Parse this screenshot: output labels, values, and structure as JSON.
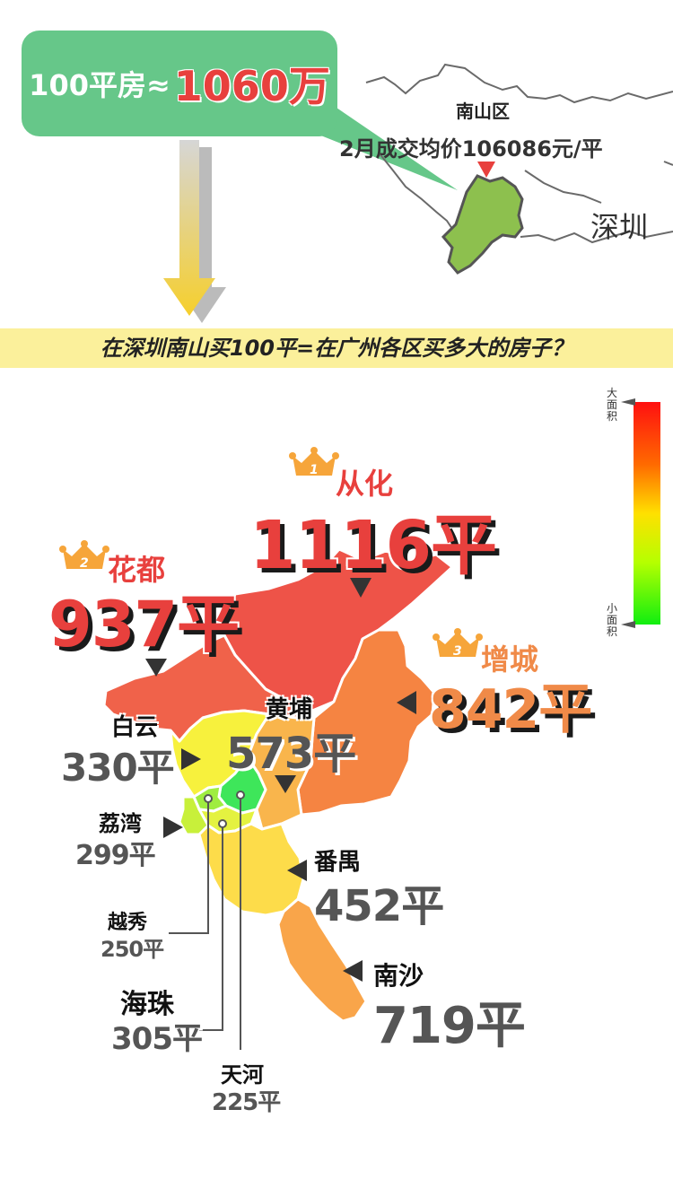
{
  "header": {
    "bubble_prefix": "100平房≈",
    "bubble_price": "1060万",
    "district_name": "南山区",
    "district_price": "2月成交均价106086元/平",
    "city_name": "深圳"
  },
  "banner": {
    "text": "在深圳南山买100平=在广州各区买多大的房子？"
  },
  "legend": {
    "top_label": "大面积",
    "bottom_label": "小面积",
    "colors": [
      "#ff1010",
      "#ff6a00",
      "#ffe000",
      "#b6ff00",
      "#10ee10"
    ]
  },
  "districts": {
    "conghua": {
      "name": "从化",
      "area": "1116平",
      "rank": "1",
      "color": "#ee5348"
    },
    "huadu": {
      "name": "花都",
      "area": "937平",
      "rank": "2",
      "color": "#f0624a"
    },
    "zengcheng": {
      "name": "增城",
      "area": "842平",
      "rank": "3",
      "color": "#f58442"
    },
    "huangpu": {
      "name": "黄埔",
      "area": "573平",
      "color": "#f9b54c"
    },
    "baiyun": {
      "name": "白云",
      "area": "330平",
      "color": "#f7f13d"
    },
    "liwan": {
      "name": "荔湾",
      "area": "299平",
      "color": "#c8f03a"
    },
    "yuexiu": {
      "name": "越秀",
      "area": "250平",
      "color": "#9fed40"
    },
    "haizhu": {
      "name": "海珠",
      "area": "305平",
      "color": "#e4f240"
    },
    "tianhe": {
      "name": "天河",
      "area": "225平",
      "color": "#3ee65a"
    },
    "panyu": {
      "name": "番禺",
      "area": "452平",
      "color": "#fddc4a"
    },
    "nansha": {
      "name": "南沙",
      "area": "719平",
      "color": "#f9a54a"
    }
  }
}
